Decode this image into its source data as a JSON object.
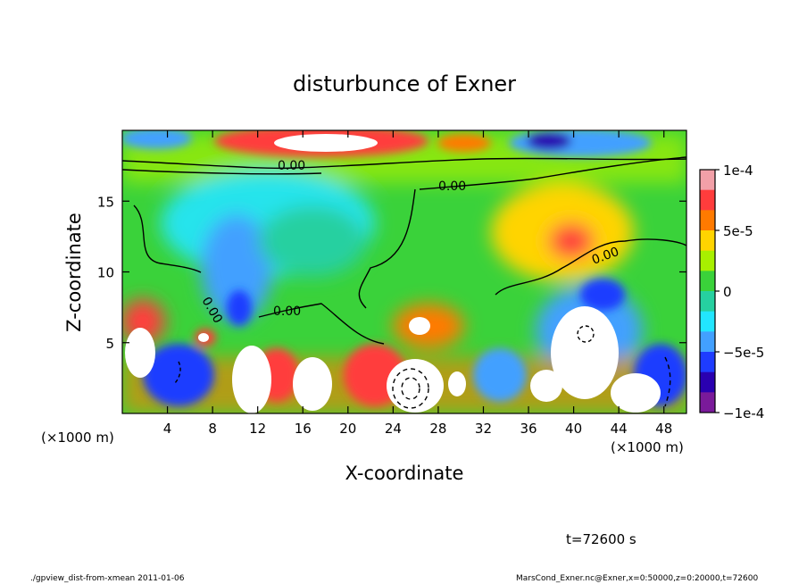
{
  "chart_data": {
    "type": "heatmap",
    "title": "disturbunce of Exner",
    "xlabel": "X-coordinate",
    "ylabel": "Z-coordinate",
    "x_unit": "(×1000 m)",
    "x_unit_right": "(×1000 m)",
    "xlim": [
      0,
      50
    ],
    "ylim": [
      0,
      20
    ],
    "x_ticks": [
      4,
      8,
      12,
      16,
      20,
      24,
      28,
      32,
      36,
      40,
      44,
      48
    ],
    "y_ticks": [
      5,
      10,
      15
    ],
    "colorbar": {
      "min": -0.0001,
      "max": 0.0001,
      "tick_labels": [
        "1e-4",
        "5e-5",
        "0",
        "−5e-5",
        "−1e-4"
      ],
      "colors": [
        "#f2a0a8",
        "#ff3c3c",
        "#ff7a00",
        "#ffd400",
        "#a8f000",
        "#3ad23a",
        "#26d0a0",
        "#22e6ff",
        "#42a0ff",
        "#1e3cff",
        "#2a00b0",
        "#7a1a9a"
      ]
    },
    "contour_labels": [
      "0.00",
      "0.00",
      "0.00",
      "0.00",
      "0.00"
    ],
    "features": [
      {
        "kind": "positive",
        "x": 18,
        "z": 19,
        "rx": 5,
        "rz": 1.3,
        "v": 1.2
      },
      {
        "kind": "negative",
        "x": 41,
        "z": 19.2,
        "rx": 3,
        "rz": 0.8,
        "v": -1.0
      },
      {
        "kind": "negative",
        "x": 13,
        "z": 12,
        "rx": 6,
        "rz": 4,
        "v": -0.55
      },
      {
        "kind": "negative",
        "x": 10,
        "z": 9,
        "rx": 1.5,
        "rz": 2.5,
        "v": -0.8
      },
      {
        "kind": "positive",
        "x": 40,
        "z": 13,
        "rx": 5,
        "rz": 4,
        "v": 0.5
      },
      {
        "kind": "positive",
        "x": 27,
        "z": 7,
        "rx": 2.5,
        "rz": 1.5,
        "v": 0.7
      },
      {
        "kind": "negative",
        "x": 42,
        "z": 6,
        "rx": 3,
        "rz": 3,
        "v": -0.9
      },
      {
        "kind": "positive",
        "x": 1.5,
        "z": 5,
        "rx": 2,
        "rz": 2,
        "v": 0.8
      }
    ],
    "timestamp": "t=72600 s"
  },
  "footer": {
    "left": "./gpview_dist-from-xmean  2011-01-06",
    "right": "MarsCond_Exner.nc@Exner,x=0:50000,z=0:20000,t=72600"
  }
}
